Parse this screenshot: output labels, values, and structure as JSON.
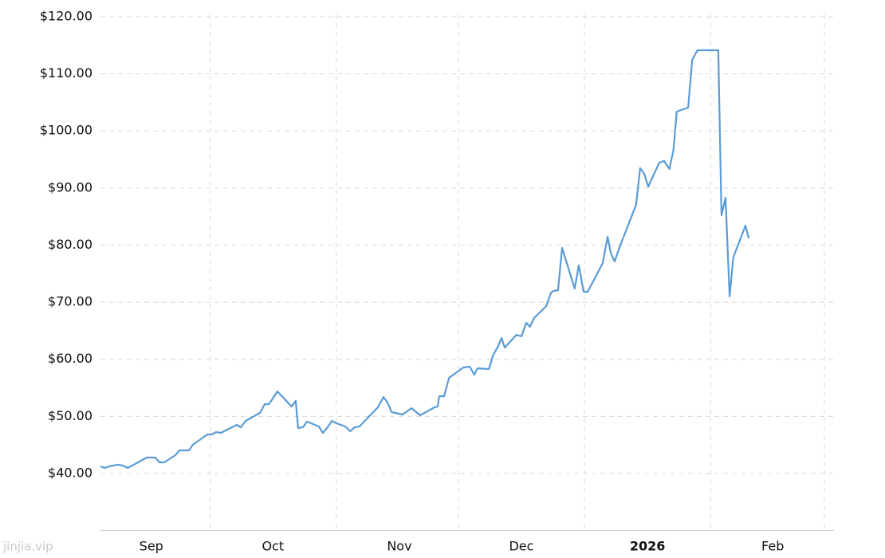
{
  "chart_data": {
    "type": "line",
    "color": "#5b9bd5",
    "x": [
      0,
      1.0,
      2.2,
      4.3,
      5.5,
      6.7,
      7.8,
      11.4,
      13.5,
      14.5,
      15.7,
      18.4,
      19.4,
      21.8,
      22.7,
      26.3,
      27.4,
      28.4,
      29.6,
      33.5,
      34.5,
      35.7,
      39.2,
      40.4,
      41.4,
      42.5,
      43.5,
      47.0,
      48.0,
      48.6,
      49.8,
      50.8,
      53.7,
      54.7,
      55.7,
      56.9,
      58.0,
      60.2,
      61.4,
      62.5,
      63.7,
      68.2,
      69.6,
      70.6,
      71.6,
      74.3,
      76.5,
      78.6,
      82.1,
      82.9,
      83.3,
      84.5,
      85.7,
      89.2,
      90.8,
      91.9,
      92.7,
      95.5,
      96.5,
      97.8,
      98.6,
      99.4,
      102.3,
      103.5,
      104.7,
      105.6,
      106.6,
      109.6,
      110.8,
      111.4,
      112.5,
      113.5,
      116.6,
      117.6,
      118.8,
      119.8,
      123.5,
      124.7,
      125.5,
      126.4,
      127.8,
      131.7,
      132.7,
      133.7,
      134.7,
      137.4,
      138.6,
      139.9,
      140.9,
      141.7,
      144.5,
      145.5,
      146.8,
      151.9,
      152.7,
      153.7,
      154.7,
      155.6,
      158.6,
      159.4
    ],
    "values": [
      41.26,
      40.98,
      41.26,
      41.54,
      41.4,
      40.98,
      41.4,
      42.79,
      42.79,
      41.95,
      41.95,
      43.21,
      44.05,
      44.05,
      45.03,
      46.84,
      46.84,
      47.26,
      47.12,
      48.52,
      48.1,
      49.21,
      50.61,
      52.15,
      52.15,
      53.26,
      54.38,
      51.73,
      52.71,
      47.96,
      48.1,
      49.08,
      48.24,
      47.12,
      47.96,
      49.21,
      48.8,
      48.24,
      47.4,
      48.1,
      48.24,
      51.59,
      53.4,
      52.43,
      50.75,
      50.33,
      51.45,
      50.19,
      51.59,
      51.73,
      53.54,
      53.54,
      56.75,
      58.57,
      58.71,
      57.31,
      58.43,
      58.29,
      60.66,
      62.34,
      63.73,
      62.06,
      64.29,
      64.01,
      66.39,
      65.69,
      67.23,
      69.32,
      71.69,
      71.97,
      72.11,
      79.51,
      72.39,
      76.44,
      71.83,
      71.83,
      76.86,
      81.47,
      78.54,
      77.14,
      79.93,
      87.05,
      93.47,
      92.49,
      90.26,
      94.45,
      94.73,
      93.33,
      96.68,
      103.38,
      104.08,
      112.46,
      114.13,
      114.13,
      85.24,
      88.31,
      71.0,
      77.84,
      83.42,
      81.19
    ],
    "xlim": [
      0,
      178
    ],
    "xgrid": [
      27,
      58,
      88,
      119,
      150,
      178
    ],
    "xticks": [
      {
        "value": 12.5,
        "label": "Sep"
      },
      {
        "value": 42.4,
        "label": "Oct"
      },
      {
        "value": 73.5,
        "label": "Nov"
      },
      {
        "value": 103.5,
        "label": "Dec"
      },
      {
        "value": 134.5,
        "label": "2026"
      },
      {
        "value": 165.3,
        "label": "Feb"
      }
    ],
    "ylim": [
      30,
      120
    ],
    "yticks": [
      {
        "value": 40,
        "label": "$40.00"
      },
      {
        "value": 50,
        "label": "$50.00"
      },
      {
        "value": 60,
        "label": "$60.00"
      },
      {
        "value": 70,
        "label": "$70.00"
      },
      {
        "value": 80,
        "label": "$80.00"
      },
      {
        "value": 90,
        "label": "$90.00"
      },
      {
        "value": 100,
        "label": "$100.00"
      },
      {
        "value": 110,
        "label": "$110.00"
      },
      {
        "value": 120,
        "label": "$120.00"
      }
    ],
    "grid": true,
    "watermark": "jinjia.vip"
  }
}
